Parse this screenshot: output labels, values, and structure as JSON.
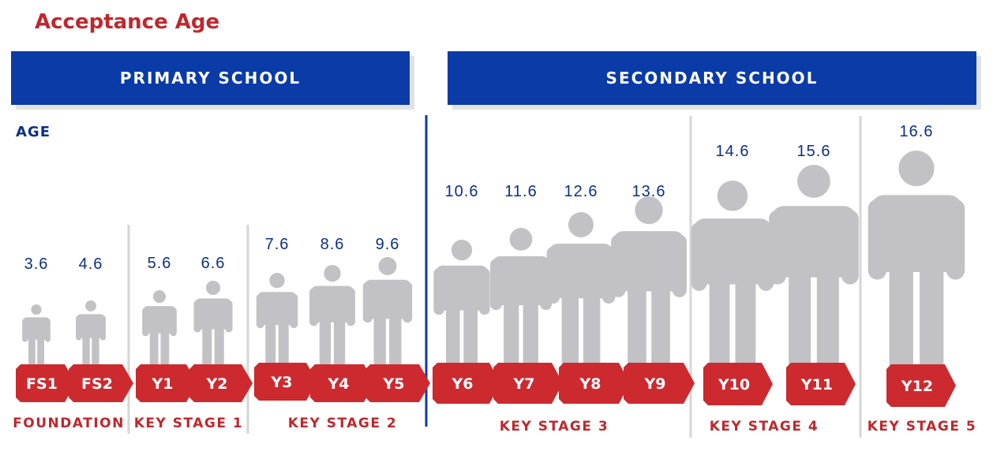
{
  "title": "Acceptance Age",
  "banners": {
    "primary": "PRIMARY SCHOOL",
    "secondary": "SECONDARY SCHOOL"
  },
  "axis_label": "AGE",
  "colors": {
    "title_red": "#c0272d",
    "banner_blue": "#0a3ba6",
    "value_blue": "#0d2f87",
    "figure_gray": "#c2c1c6",
    "tag_red": "#cc2a2f",
    "divider_gray": "#d6d6d6"
  },
  "years": [
    {
      "label": "FS1",
      "age": "3.6"
    },
    {
      "label": "FS2",
      "age": "4.6"
    },
    {
      "label": "Y1",
      "age": "5.6"
    },
    {
      "label": "Y2",
      "age": "6.6"
    },
    {
      "label": "Y3",
      "age": "7.6"
    },
    {
      "label": "Y4",
      "age": "8.6"
    },
    {
      "label": "Y5",
      "age": "9.6"
    },
    {
      "label": "Y6",
      "age": "10.6"
    },
    {
      "label": "Y7",
      "age": "11.6"
    },
    {
      "label": "Y8",
      "age": "12.6"
    },
    {
      "label": "Y9",
      "age": "13.6"
    },
    {
      "label": "Y10",
      "age": "14.6"
    },
    {
      "label": "Y11",
      "age": "15.6"
    },
    {
      "label": "Y12",
      "age": "16.6"
    }
  ],
  "stages": [
    "FOUNDATION",
    "KEY STAGE 1",
    "KEY STAGE 2",
    "KEY STAGE 3",
    "KEY STAGE 4",
    "KEY STAGE 5"
  ]
}
